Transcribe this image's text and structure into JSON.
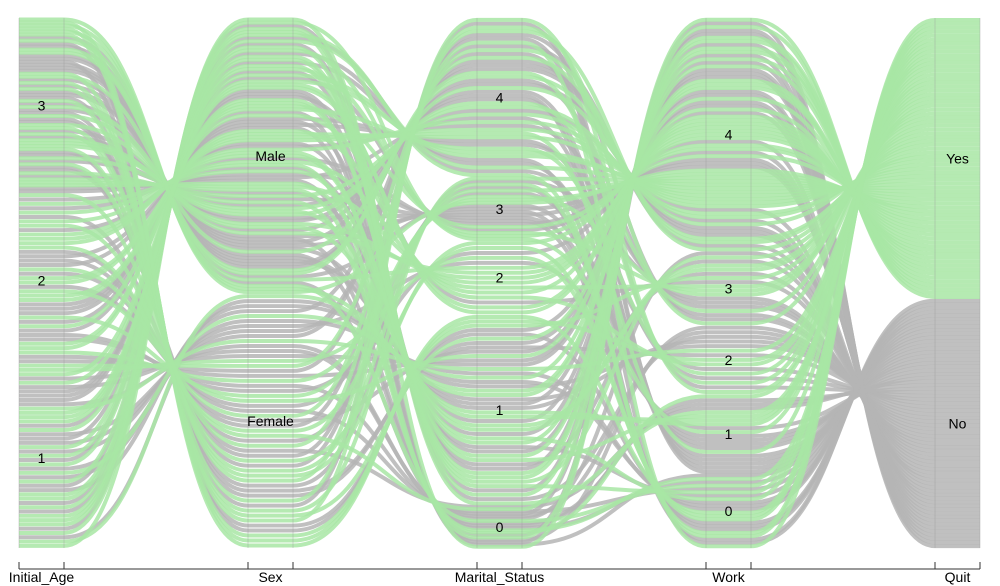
{
  "chart_data": {
    "type": "alluvial",
    "axes": [
      {
        "name": "Initial_Age",
        "categories": [
          "1",
          "2",
          "3"
        ]
      },
      {
        "name": "Sex",
        "categories": [
          "Female",
          "Male"
        ]
      },
      {
        "name": "Marital_Status",
        "categories": [
          "0",
          "1",
          "2",
          "3",
          "4"
        ]
      },
      {
        "name": "Work",
        "categories": [
          "0",
          "1",
          "2",
          "3",
          "4"
        ]
      },
      {
        "name": "Quit",
        "categories": [
          "No",
          "Yes"
        ]
      }
    ],
    "highlight_colors": {
      "Yes": "#a8e6a5",
      "No": "#b5b5b5"
    }
  }
}
